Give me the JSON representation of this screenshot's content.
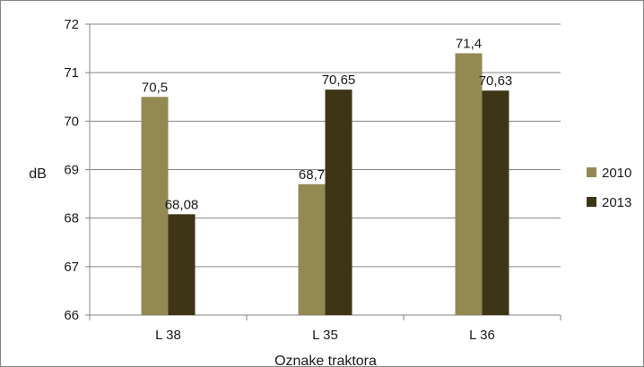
{
  "chart_data": {
    "type": "bar",
    "title": "",
    "xlabel": "Oznake traktora",
    "ylabel": "dB",
    "ylim": [
      66,
      72
    ],
    "yticks": [
      66,
      67,
      68,
      69,
      70,
      71,
      72
    ],
    "categories": [
      "L 38",
      "L 35",
      "L 36"
    ],
    "grid": true,
    "legend_position": "right",
    "series": [
      {
        "name": "2010",
        "values": [
          70.5,
          68.7,
          71.4
        ],
        "labels": [
          "70,5",
          "68,7",
          "71,4"
        ],
        "color": "#938953"
      },
      {
        "name": "2013",
        "values": [
          68.08,
          70.65,
          70.63
        ],
        "labels": [
          "68,08",
          "70,65",
          "70,63"
        ],
        "color": "#3d3514"
      }
    ]
  }
}
